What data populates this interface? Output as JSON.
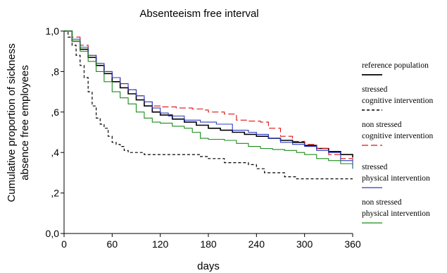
{
  "chart_data": {
    "type": "line",
    "title": "Absenteeism free interval",
    "xlabel": "days",
    "ylabel_lines": [
      "Cumulative proportion of sickness",
      "absence free employees"
    ],
    "xlim": [
      0,
      360
    ],
    "ylim": [
      0,
      1
    ],
    "x_ticks": [
      0,
      60,
      120,
      180,
      240,
      300,
      360
    ],
    "y_ticks": [
      {
        "value": 0.0,
        "label": "0,0"
      },
      {
        "value": 0.2,
        "label": ",2"
      },
      {
        "value": 0.4,
        "label": ",4"
      },
      {
        "value": 0.6,
        "label": ",6"
      },
      {
        "value": 0.8,
        "label": ",8"
      },
      {
        "value": 1.0,
        "label": "1,0"
      }
    ],
    "grid": false,
    "legend_position": "right",
    "series": [
      {
        "name": "reference population",
        "legend_lines": [
          "reference population"
        ],
        "color": "#000000",
        "dash": "solid",
        "width": 1.6,
        "points": [
          [
            0,
            1.0
          ],
          [
            10,
            0.95
          ],
          [
            20,
            0.91
          ],
          [
            30,
            0.87
          ],
          [
            40,
            0.83
          ],
          [
            50,
            0.79
          ],
          [
            60,
            0.75
          ],
          [
            70,
            0.72
          ],
          [
            80,
            0.69
          ],
          [
            90,
            0.66
          ],
          [
            100,
            0.63
          ],
          [
            110,
            0.6
          ],
          [
            120,
            0.585
          ],
          [
            135,
            0.565
          ],
          [
            150,
            0.55
          ],
          [
            165,
            0.535
          ],
          [
            180,
            0.52
          ],
          [
            195,
            0.51
          ],
          [
            210,
            0.5
          ],
          [
            225,
            0.49
          ],
          [
            240,
            0.48
          ],
          [
            255,
            0.47
          ],
          [
            270,
            0.46
          ],
          [
            285,
            0.45
          ],
          [
            300,
            0.435
          ],
          [
            315,
            0.42
          ],
          [
            330,
            0.405
          ],
          [
            345,
            0.39
          ],
          [
            360,
            0.375
          ]
        ]
      },
      {
        "name": "stressed cognitive intervention",
        "legend_lines": [
          "stressed",
          "cognitive intervention"
        ],
        "color": "#000000",
        "dash": "4,3",
        "width": 1.2,
        "points": [
          [
            0,
            1.0
          ],
          [
            5,
            0.97
          ],
          [
            10,
            0.93
          ],
          [
            15,
            0.88
          ],
          [
            20,
            0.83
          ],
          [
            25,
            0.77
          ],
          [
            30,
            0.7
          ],
          [
            35,
            0.63
          ],
          [
            40,
            0.57
          ],
          [
            45,
            0.54
          ],
          [
            50,
            0.52
          ],
          [
            55,
            0.48
          ],
          [
            60,
            0.45
          ],
          [
            65,
            0.44
          ],
          [
            70,
            0.43
          ],
          [
            75,
            0.41
          ],
          [
            80,
            0.4
          ],
          [
            90,
            0.4
          ],
          [
            100,
            0.39
          ],
          [
            120,
            0.39
          ],
          [
            150,
            0.39
          ],
          [
            170,
            0.38
          ],
          [
            180,
            0.37
          ],
          [
            190,
            0.37
          ],
          [
            200,
            0.35
          ],
          [
            215,
            0.35
          ],
          [
            230,
            0.34
          ],
          [
            240,
            0.32
          ],
          [
            250,
            0.3
          ],
          [
            265,
            0.3
          ],
          [
            275,
            0.28
          ],
          [
            290,
            0.27
          ],
          [
            300,
            0.27
          ],
          [
            330,
            0.27
          ],
          [
            360,
            0.27
          ]
        ]
      },
      {
        "name": "non stressed cognitive intervention",
        "legend_lines": [
          "non stressed",
          "cognitive intervention"
        ],
        "color": "#e01010",
        "dash": "9,4",
        "width": 1.1,
        "points": [
          [
            0,
            1.0
          ],
          [
            10,
            0.97
          ],
          [
            20,
            0.93
          ],
          [
            30,
            0.88
          ],
          [
            40,
            0.84
          ],
          [
            50,
            0.8
          ],
          [
            60,
            0.77
          ],
          [
            70,
            0.74
          ],
          [
            80,
            0.71
          ],
          [
            90,
            0.68
          ],
          [
            100,
            0.65
          ],
          [
            110,
            0.63
          ],
          [
            120,
            0.625
          ],
          [
            140,
            0.62
          ],
          [
            160,
            0.615
          ],
          [
            175,
            0.61
          ],
          [
            180,
            0.6
          ],
          [
            200,
            0.59
          ],
          [
            215,
            0.56
          ],
          [
            230,
            0.555
          ],
          [
            245,
            0.55
          ],
          [
            255,
            0.52
          ],
          [
            270,
            0.48
          ],
          [
            285,
            0.455
          ],
          [
            300,
            0.44
          ],
          [
            315,
            0.42
          ],
          [
            330,
            0.39
          ],
          [
            345,
            0.37
          ],
          [
            360,
            0.335
          ]
        ]
      },
      {
        "name": "stressed physical intervention",
        "legend_lines": [
          "stressed",
          "physical intervention"
        ],
        "color": "#2b3cc4",
        "dash": "solid",
        "width": 1.1,
        "points": [
          [
            0,
            1.0
          ],
          [
            10,
            0.96
          ],
          [
            20,
            0.92
          ],
          [
            30,
            0.88
          ],
          [
            40,
            0.84
          ],
          [
            50,
            0.8
          ],
          [
            60,
            0.77
          ],
          [
            70,
            0.74
          ],
          [
            80,
            0.71
          ],
          [
            90,
            0.68
          ],
          [
            100,
            0.65
          ],
          [
            110,
            0.62
          ],
          [
            120,
            0.595
          ],
          [
            130,
            0.58
          ],
          [
            150,
            0.56
          ],
          [
            170,
            0.55
          ],
          [
            190,
            0.54
          ],
          [
            210,
            0.51
          ],
          [
            230,
            0.5
          ],
          [
            240,
            0.49
          ],
          [
            255,
            0.47
          ],
          [
            270,
            0.45
          ],
          [
            285,
            0.44
          ],
          [
            300,
            0.43
          ],
          [
            315,
            0.41
          ],
          [
            330,
            0.4
          ],
          [
            345,
            0.36
          ],
          [
            360,
            0.32
          ]
        ]
      },
      {
        "name": "non stressed physical intervention",
        "legend_lines": [
          "non stressed",
          "physical intervention"
        ],
        "color": "#1a8c1a",
        "dash": "solid",
        "width": 1.1,
        "points": [
          [
            0,
            1.0
          ],
          [
            10,
            0.95
          ],
          [
            20,
            0.9
          ],
          [
            30,
            0.85
          ],
          [
            40,
            0.8
          ],
          [
            50,
            0.75
          ],
          [
            60,
            0.7
          ],
          [
            70,
            0.67
          ],
          [
            80,
            0.64
          ],
          [
            90,
            0.6
          ],
          [
            100,
            0.57
          ],
          [
            110,
            0.55
          ],
          [
            120,
            0.545
          ],
          [
            135,
            0.53
          ],
          [
            150,
            0.52
          ],
          [
            160,
            0.5
          ],
          [
            170,
            0.47
          ],
          [
            180,
            0.465
          ],
          [
            200,
            0.46
          ],
          [
            215,
            0.445
          ],
          [
            230,
            0.43
          ],
          [
            245,
            0.42
          ],
          [
            260,
            0.415
          ],
          [
            275,
            0.41
          ],
          [
            290,
            0.4
          ],
          [
            300,
            0.39
          ],
          [
            315,
            0.37
          ],
          [
            330,
            0.36
          ],
          [
            345,
            0.345
          ],
          [
            360,
            0.33
          ]
        ]
      }
    ]
  }
}
